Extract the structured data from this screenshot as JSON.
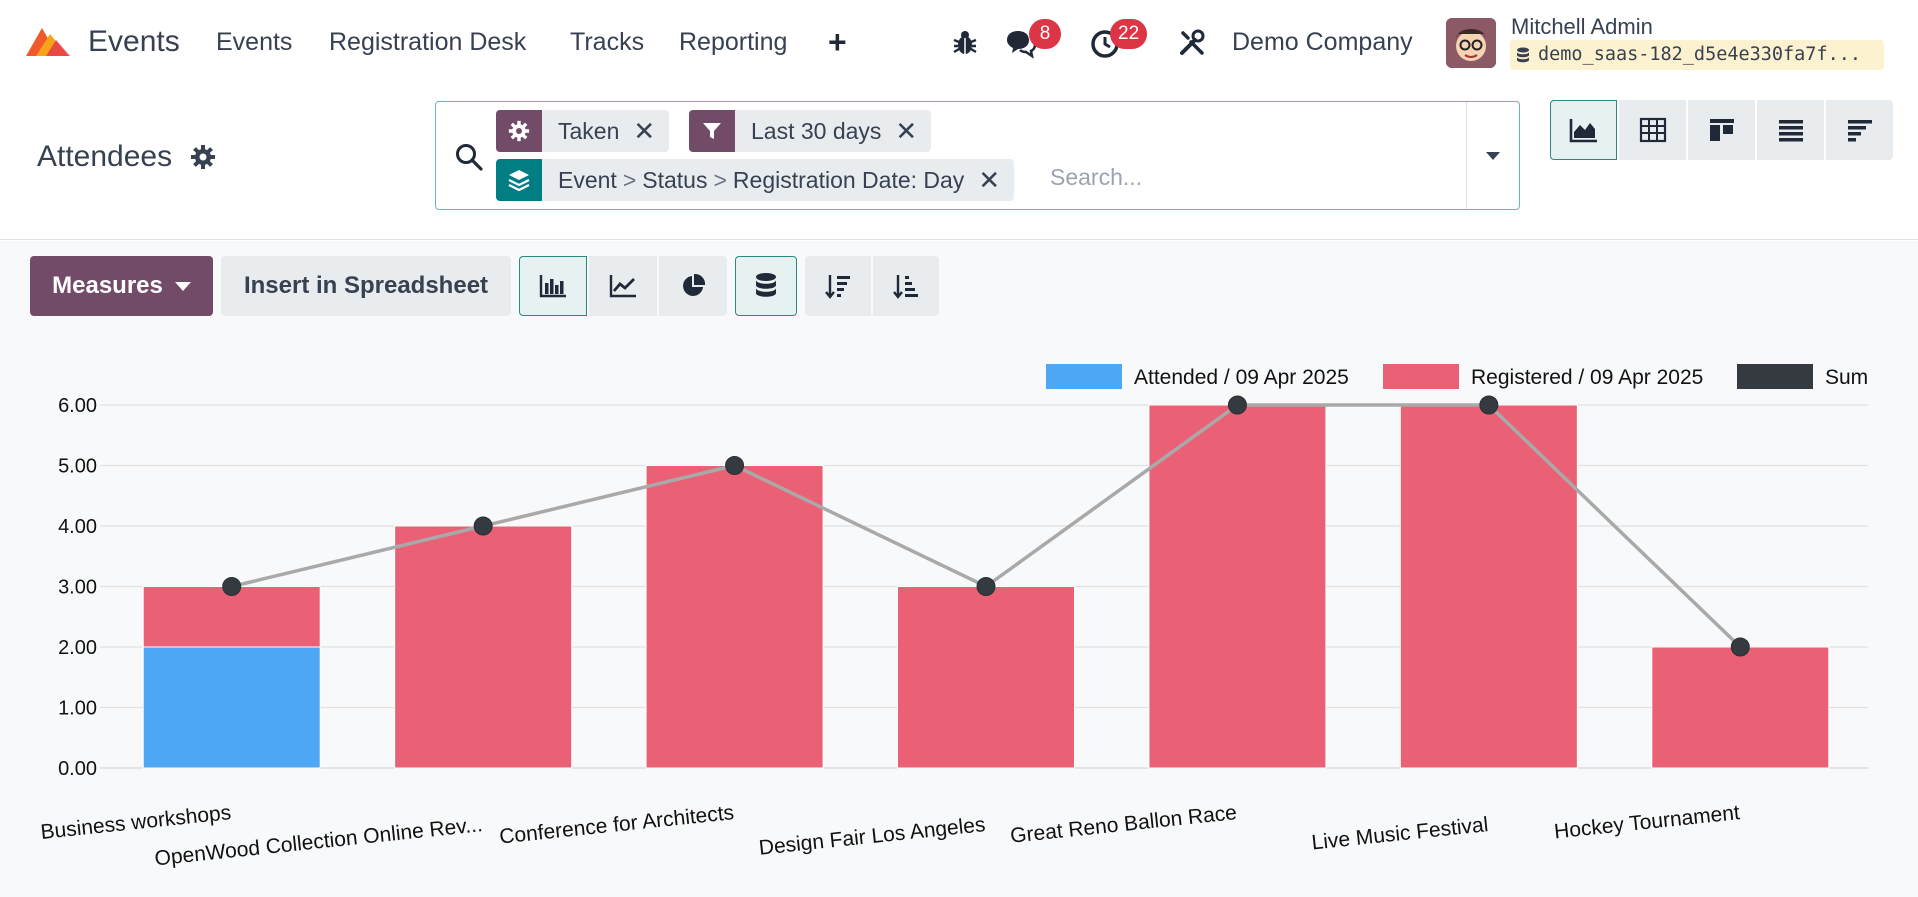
{
  "navbar": {
    "app_name": "Events",
    "menu": [
      "Events",
      "Registration Desk",
      "Tracks",
      "Reporting"
    ],
    "messages_count": "8",
    "activities_count": "22",
    "company": "Demo Company",
    "user_name": "Mitchell Admin",
    "database": "demo_saas-182_d5e4e330fa7f..."
  },
  "control": {
    "title": "Attendees",
    "facets": {
      "taken": "Taken",
      "date_filter": "Last 30 days",
      "groupby": [
        "Event",
        "Status",
        "Registration Date: Day"
      ],
      "groupby_sep": ">"
    },
    "search_placeholder": "Search..."
  },
  "toolbar": {
    "measures_label": "Measures",
    "insert_label": "Insert in Spreadsheet"
  },
  "colors": {
    "brand": "#714b67",
    "accent": "#2a8a82",
    "attended": "#4ea7f2",
    "registered": "#ea6175",
    "sum": "#343a40",
    "sum_line": "#a9a9a9"
  },
  "chart_data": {
    "type": "bar",
    "stacked": true,
    "categories": [
      "Business workshops",
      "OpenWood Collection Online Rev...",
      "Conference for Architects",
      "Design Fair Los Angeles",
      "Great Reno Ballon Race",
      "Live Music Festival",
      "Hockey Tournament"
    ],
    "series": [
      {
        "name": "Attended / 09 Apr 2025",
        "kind": "bar",
        "values": [
          2,
          0,
          0,
          0,
          0,
          0,
          0
        ]
      },
      {
        "name": "Registered / 09 Apr 2025",
        "kind": "bar",
        "values": [
          1,
          4,
          5,
          3,
          6,
          6,
          2
        ]
      },
      {
        "name": "Sum",
        "kind": "line",
        "values": [
          3,
          4,
          5,
          3,
          6,
          6,
          2
        ]
      }
    ],
    "ylim": [
      0,
      6
    ],
    "yticks": [
      "0.00",
      "1.00",
      "2.00",
      "3.00",
      "4.00",
      "5.00",
      "6.00"
    ],
    "grid": true,
    "legend": "top-right"
  }
}
